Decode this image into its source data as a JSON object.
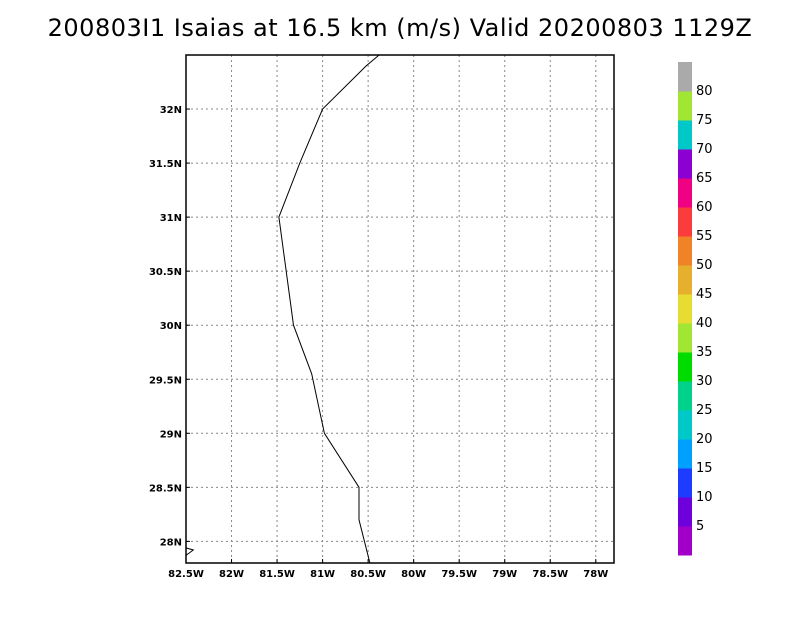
{
  "title": "200803I1 Isaias at 16.5 km (m/s) Valid 20200803 1129Z",
  "map": {
    "lon_range": [
      -82.5,
      -77.8
    ],
    "lat_range": [
      27.8,
      32.5
    ],
    "lon_ticks": [
      {
        "value": -82.5,
        "label": "82.5W"
      },
      {
        "value": -82.0,
        "label": "82W"
      },
      {
        "value": -81.5,
        "label": "81.5W"
      },
      {
        "value": -81.0,
        "label": "81W"
      },
      {
        "value": -80.5,
        "label": "80.5W"
      },
      {
        "value": -80.0,
        "label": "80W"
      },
      {
        "value": -79.5,
        "label": "79.5W"
      },
      {
        "value": -79.0,
        "label": "79W"
      },
      {
        "value": -78.5,
        "label": "78.5W"
      },
      {
        "value": -78.0,
        "label": "78W"
      }
    ],
    "lat_ticks": [
      {
        "value": 28.0,
        "label": "28N"
      },
      {
        "value": 28.5,
        "label": "28.5N"
      },
      {
        "value": 29.0,
        "label": "29N"
      },
      {
        "value": 29.5,
        "label": "29.5N"
      },
      {
        "value": 30.0,
        "label": "30N"
      },
      {
        "value": 30.5,
        "label": "30.5N"
      },
      {
        "value": 31.0,
        "label": "31N"
      },
      {
        "value": 31.5,
        "label": "31.5N"
      },
      {
        "value": 32.0,
        "label": "32N"
      }
    ],
    "grid": true,
    "coastline": [
      [
        -80.38,
        32.5
      ],
      [
        -80.52,
        32.4
      ],
      [
        -81.0,
        32.0
      ],
      [
        -81.25,
        31.5
      ],
      [
        -81.48,
        31.0
      ],
      [
        -81.4,
        30.5
      ],
      [
        -81.32,
        30.0
      ],
      [
        -81.12,
        29.55
      ],
      [
        -80.98,
        29.0
      ],
      [
        -80.6,
        28.5
      ],
      [
        -80.6,
        28.2
      ],
      [
        -80.48,
        27.8
      ]
    ],
    "coastline_small": [
      [
        -82.5,
        27.87
      ],
      [
        -82.42,
        27.92
      ],
      [
        -82.5,
        27.94
      ]
    ]
  },
  "colorbar": {
    "labels": [
      "5",
      "10",
      "15",
      "20",
      "25",
      "30",
      "35",
      "40",
      "45",
      "50",
      "55",
      "60",
      "65",
      "70",
      "75",
      "80"
    ],
    "colors": [
      "#a000c8",
      "#6e00dc",
      "#1e3cff",
      "#00a0ff",
      "#00c8c8",
      "#00d28c",
      "#00dc00",
      "#a0e632",
      "#e6dc32",
      "#e6af2d",
      "#f08228",
      "#fa3c3c",
      "#f00082",
      "#8c00d2",
      "#00c8c8",
      "#a0e632",
      "#aaaaaa"
    ]
  }
}
